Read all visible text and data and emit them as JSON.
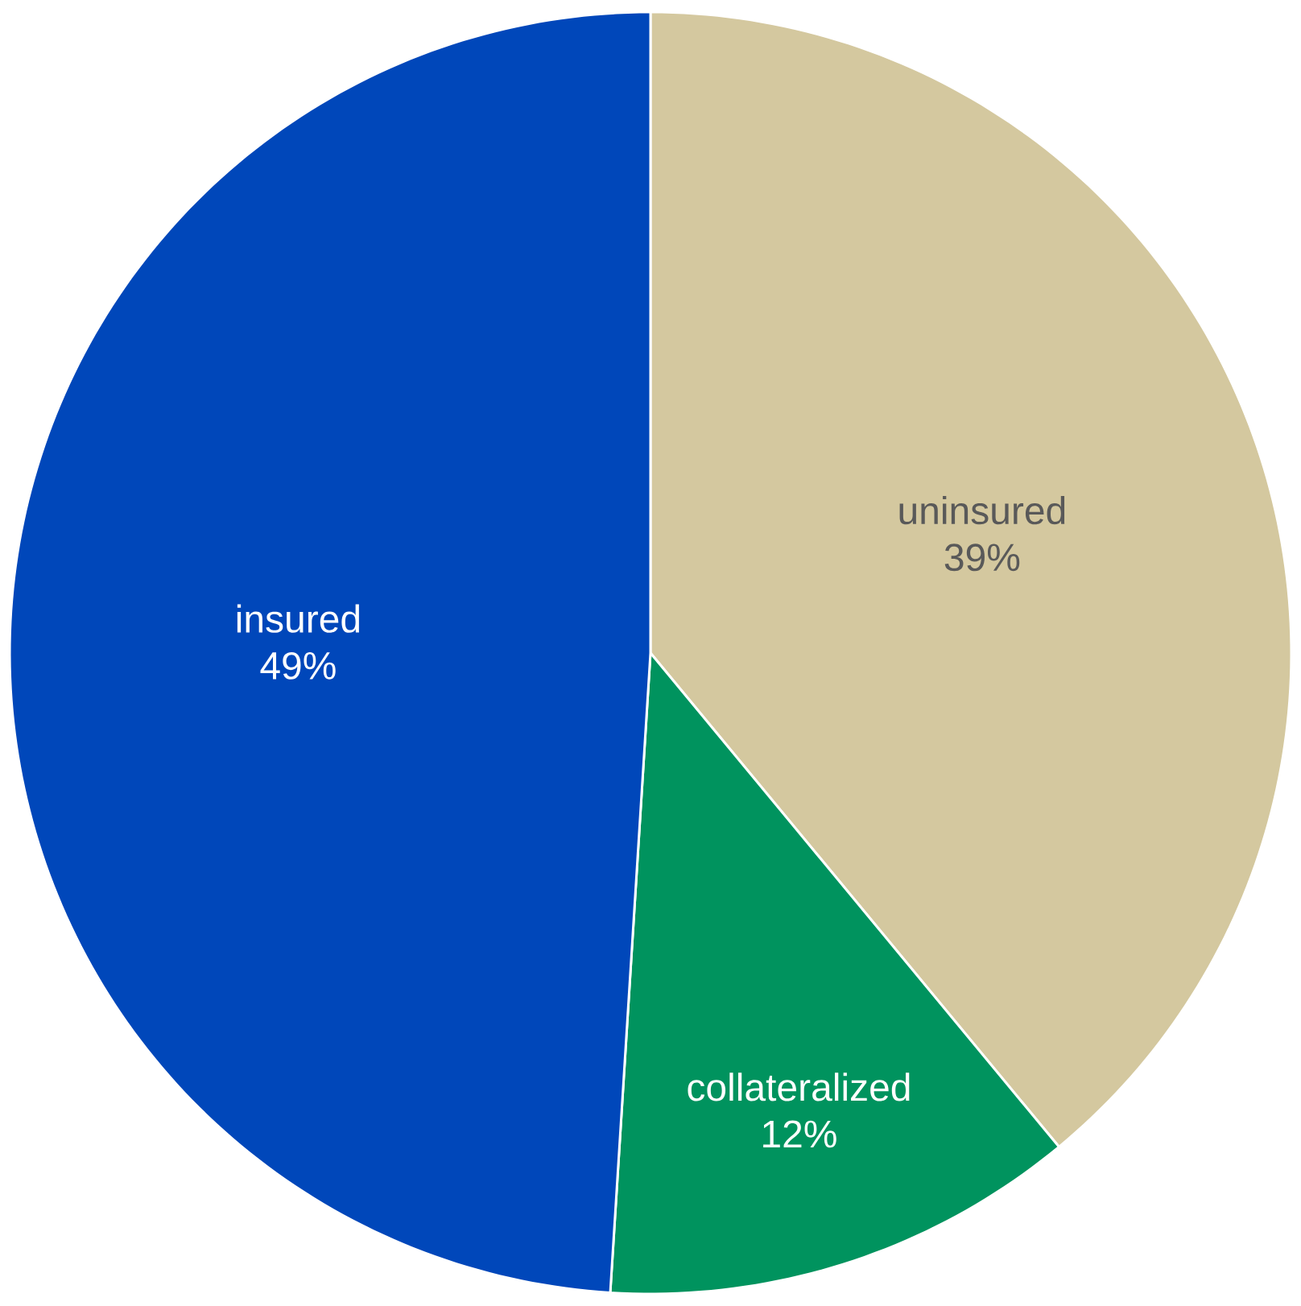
{
  "chart_data": {
    "type": "pie",
    "categories": [
      "uninsured",
      "collateralized",
      "insured"
    ],
    "values": [
      39,
      12,
      49
    ],
    "value_labels": [
      "39%",
      "12%",
      "49%"
    ],
    "colors": [
      "#d4c89f",
      "#00935e",
      "#0047ba"
    ]
  }
}
